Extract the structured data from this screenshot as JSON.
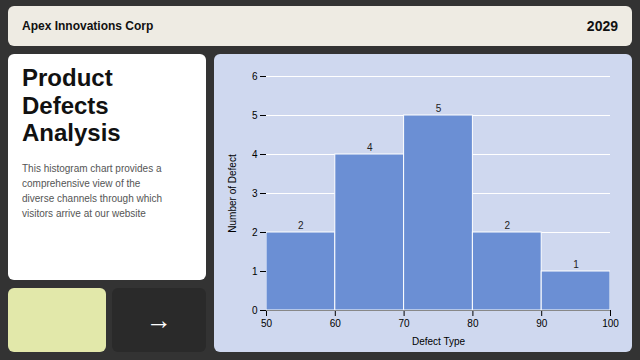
{
  "chart_data": {
    "type": "histogram",
    "title": "Product Defects Analysis",
    "annotations": [
      "Apex Innovations Corp",
      "2029",
      "This histogram chart provides a\ncomprehensive view of the\ndiverse channels through which\nvisitors arrive at our website",
      "→"
    ],
    "bins": [
      50,
      60,
      70,
      80,
      90,
      100
    ],
    "values": [
      2,
      4,
      5,
      2,
      1
    ],
    "color": "#6b8fd4",
    "xlabel": "Defect Type",
    "ylabel": "Number of Defect",
    "xlim": [
      50,
      100
    ],
    "ylim": [
      0,
      6
    ],
    "xticks": [
      50,
      60,
      70,
      80,
      90,
      100
    ],
    "yticks": [
      0,
      1,
      2,
      3,
      4,
      5,
      6
    ],
    "grid": true,
    "data_labels": true
  }
}
